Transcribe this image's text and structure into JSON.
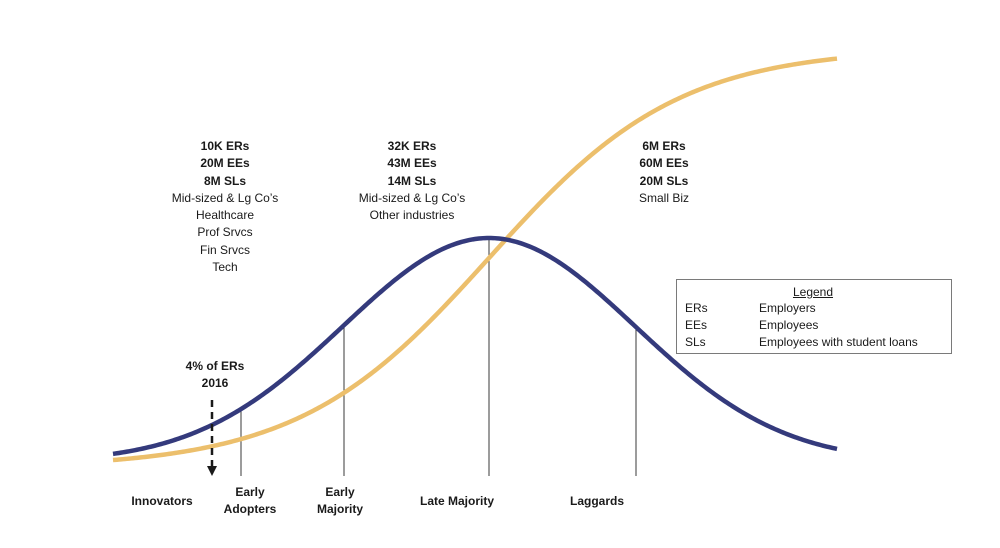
{
  "chart_data": {
    "type": "diagram",
    "curves": [
      {
        "kind": "bell-curve",
        "color": "#343a7c"
      },
      {
        "kind": "s-curve",
        "color": "#ecbf6c"
      }
    ],
    "categories": [
      "Innovators",
      "Early Adopters",
      "Early Majority",
      "Late Majority",
      "Laggards"
    ],
    "category_labels": [
      {
        "lines": [
          "Innovators"
        ]
      },
      {
        "lines": [
          "Early",
          "Adopters"
        ]
      },
      {
        "lines": [
          "Early",
          "Majority"
        ]
      },
      {
        "lines": [
          "Late Majority"
        ]
      },
      {
        "lines": [
          "Laggards"
        ]
      }
    ],
    "stat_blocks": [
      {
        "bold": [
          "10K ERs",
          "20M EEs",
          "8M SLs"
        ],
        "normal": [
          "Mid-sized & Lg Co’s",
          "Healthcare",
          "Prof Srvcs",
          "Fin Srvcs",
          "Tech"
        ]
      },
      {
        "bold": [
          "32K ERs",
          "43M EEs",
          "14M SLs"
        ],
        "normal": [
          "Mid-sized & Lg Co’s",
          "Other industries"
        ]
      },
      {
        "bold": [
          "6M ERs",
          "60M EEs",
          "20M SLs"
        ],
        "normal": [
          "Small Biz"
        ]
      }
    ],
    "marker": {
      "lines": [
        "4% of ERs",
        "2016"
      ]
    }
  },
  "legend": {
    "title": "Legend",
    "items": [
      {
        "abbr": "ERs",
        "desc": "Employers"
      },
      {
        "abbr": "EEs",
        "desc": "Employees"
      },
      {
        "abbr": "SLs",
        "desc": "Employees with student loans"
      }
    ]
  }
}
